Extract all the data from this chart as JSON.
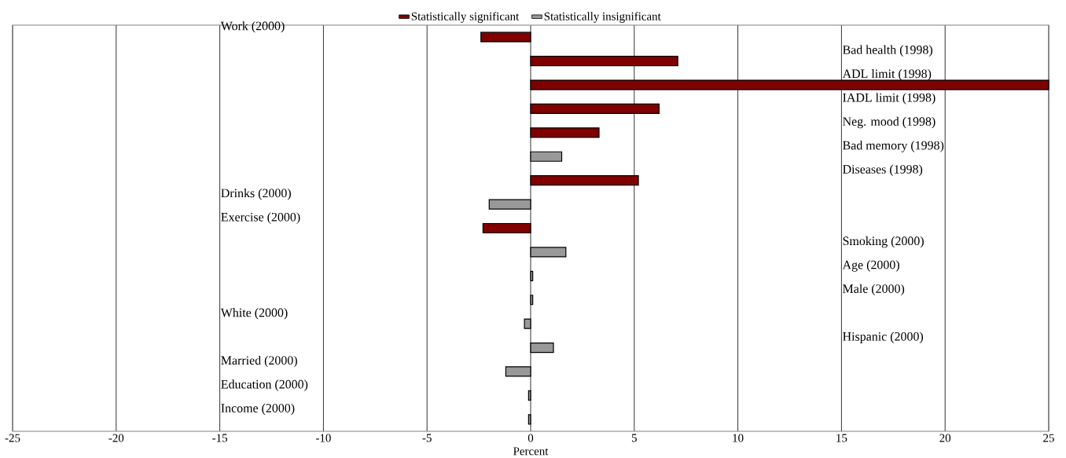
{
  "chart_data": {
    "type": "bar",
    "orientation": "horizontal",
    "xlabel": "Percent",
    "grid": "x",
    "legend": "top",
    "categories": [
      "Work (2000)",
      "Bad health (1998)",
      "ADL limit (1998)",
      "IADL limit (1998)",
      "Neg. mood (1998)",
      "Bad memory (1998)",
      "Diseases (1998)",
      "Drinks (2000)",
      "Exercise (2000)",
      "Smoking (2000)",
      "Age (2000)",
      "Male (2000)",
      "White (2000)",
      "Hispanic (2000)",
      "Married (2000)",
      "Education (2000)",
      "Income (2000)"
    ],
    "series": [
      {
        "name": "Statistically significant",
        "color": "#800000",
        "values": [
          -2.4,
          7.1,
          25,
          6.2,
          3.3,
          null,
          5.2,
          null,
          -2.3,
          null,
          null,
          null,
          null,
          null,
          null,
          null,
          null
        ]
      },
      {
        "name": "Statistically insignificant",
        "color": "#999999",
        "values": [
          null,
          null,
          null,
          null,
          null,
          1.5,
          null,
          -2.0,
          null,
          1.7,
          0.1,
          0.1,
          -0.3,
          1.1,
          -1.2,
          -0.1,
          -0.1
        ]
      }
    ],
    "xlim": [
      -25,
      25
    ],
    "xticks": [
      -25,
      -20,
      -15,
      -10,
      -5,
      0,
      5,
      10,
      15,
      20,
      25
    ]
  }
}
